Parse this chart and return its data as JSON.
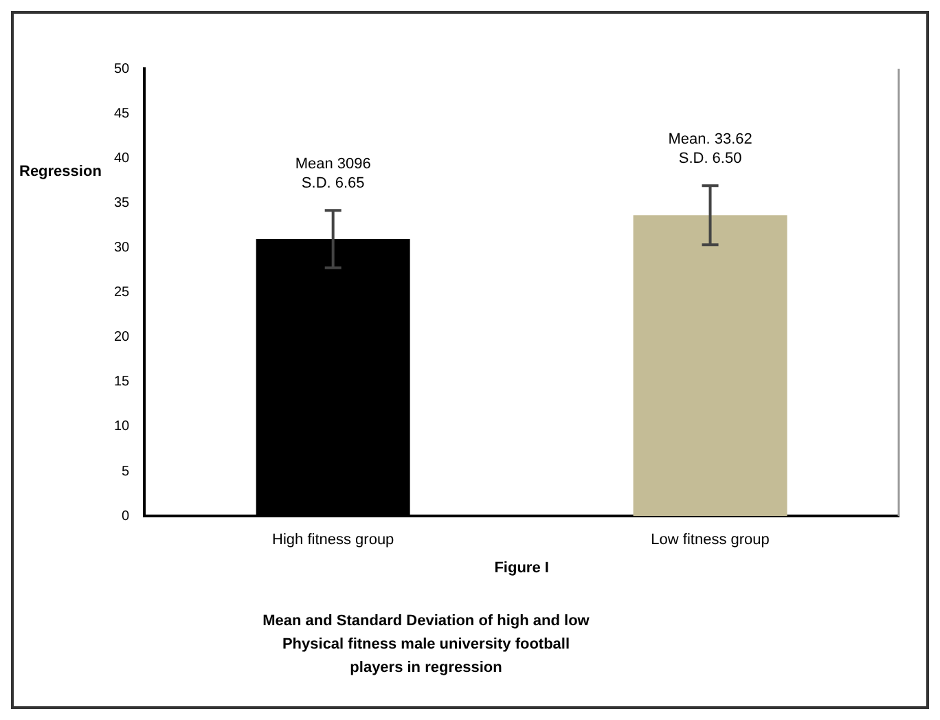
{
  "chart_data": {
    "type": "bar",
    "xlabel": "Figure I",
    "ylabel": "Regression",
    "categories": [
      "High fitness group",
      "Low fitness group"
    ],
    "values": [
      30.96,
      33.62
    ],
    "colors": [
      "#000000",
      "#c4bc96"
    ],
    "errors": [
      3.2,
      3.3
    ],
    "value_labels": [
      "Mean 3096\nS.D. 6.65",
      "Mean. 33.62\nS.D. 6.50"
    ],
    "ylim": [
      0,
      50
    ],
    "yticks": [
      0,
      5,
      10,
      15,
      20,
      25,
      30,
      35,
      40,
      45,
      50
    ],
    "grid": false,
    "legend": false,
    "annotations": [
      "Mean and Standard Deviation of high and low\nPhysical fitness male university football\nplayers in regression"
    ]
  }
}
